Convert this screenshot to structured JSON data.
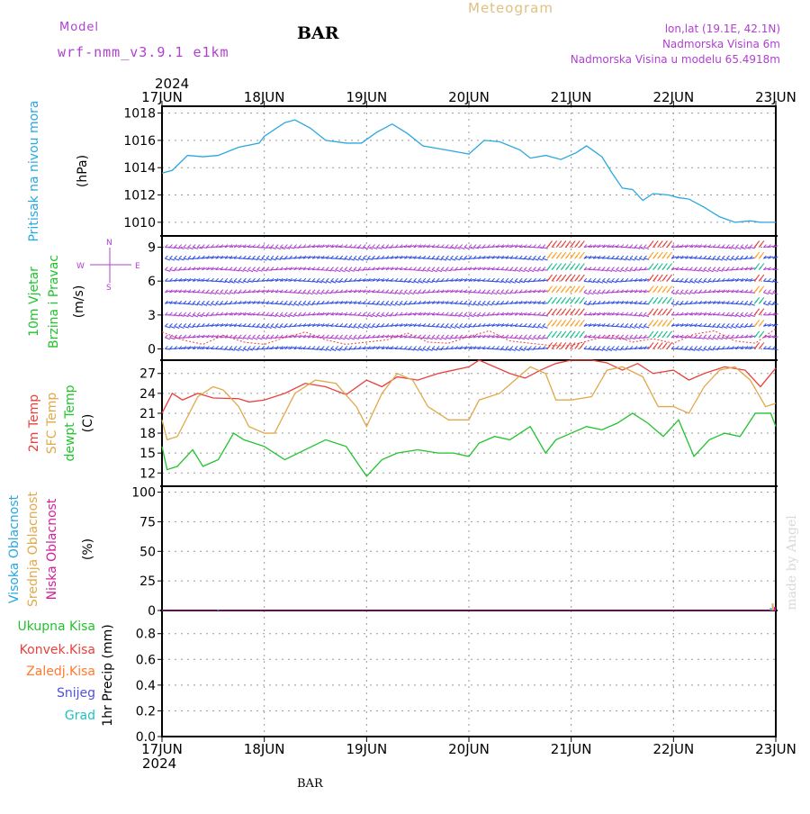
{
  "header": {
    "model_label": "Model",
    "model_name": "wrf-nmm_v3.9.1  e1km",
    "station": "BAR",
    "product": "Meteogram",
    "coords": "lon,lat (19.1E, 42.1N)",
    "elevation": "Nadmorska Visina 6m",
    "model_elevation": "Nadmorska Visina u modelu 65.4918m",
    "year_top": "2024",
    "year_bottom": "2024",
    "footer_station": "BAR",
    "credit": "made by Angel"
  },
  "colors": {
    "pressure": "#2aa7e0",
    "temp2m": "#e8413c",
    "sfc_temp": "#e0a94a",
    "dewpoint": "#22c32e",
    "wind_dir_label": "#b040d0",
    "high_cloud": "#2aa7e0",
    "mid_cloud": "#e0a94a",
    "low_cloud": "#d0209a",
    "total_precip": "#22c32e",
    "conv_precip": "#e8413c",
    "frozen_precip": "#ff7a30",
    "snow": "#5050e0",
    "hail": "#20c0c0"
  },
  "chart_data": [
    {
      "type": "line",
      "panel": "pressure",
      "ylabel_name": "Pritisak na nivou mora",
      "ylabel_unit": "(hPa)",
      "x_ticks": [
        "17JUN",
        "18JUN",
        "19JUN",
        "20JUN",
        "21JUN",
        "22JUN",
        "23JUN"
      ],
      "x_range_days": [
        0,
        6
      ],
      "ylim": [
        1009,
        1018.5
      ],
      "yticks": [
        1010,
        1012,
        1014,
        1016,
        1018
      ],
      "grid": true,
      "series": [
        {
          "x": [
            0,
            0.1,
            0.25,
            0.4,
            0.55,
            0.75,
            0.95,
            1.0,
            1.2,
            1.3,
            1.45,
            1.6,
            1.8,
            1.95,
            2.1,
            2.25,
            2.4,
            2.55,
            2.7,
            2.85,
            3.0,
            3.15,
            3.3,
            3.5,
            3.6,
            3.75,
            3.9,
            4.05,
            4.15,
            4.3,
            4.4,
            4.5,
            4.6,
            4.7,
            4.8,
            4.95,
            5.05,
            5.15,
            5.3,
            5.45,
            5.6,
            5.75,
            5.85,
            5.95,
            6.0
          ],
          "values": [
            1013.6,
            1013.8,
            1014.9,
            1014.8,
            1014.9,
            1015.5,
            1015.8,
            1016.3,
            1017.3,
            1017.5,
            1016.9,
            1016.0,
            1015.8,
            1015.8,
            1016.6,
            1017.2,
            1016.5,
            1015.6,
            1015.4,
            1015.2,
            1015.0,
            1016.0,
            1015.9,
            1015.3,
            1014.7,
            1014.9,
            1014.6,
            1015.1,
            1015.6,
            1014.8,
            1013.6,
            1012.5,
            1012.4,
            1011.6,
            1012.1,
            1012.0,
            1011.8,
            1011.7,
            1011.1,
            1010.4,
            1010.0,
            1010.1,
            1010.0,
            1010.0,
            1010.0
          ]
        }
      ]
    },
    {
      "type": "scatter",
      "panel": "wind",
      "ylabel_name": "10m Vjetar",
      "ylabel_name2": "Brzina i Pravac",
      "ylabel_unit": "(m/s)",
      "compass": {
        "n": "N",
        "s": "S",
        "e": "E",
        "w": "W"
      },
      "ylim": [
        -1,
        10
      ],
      "yticks": [
        0,
        3,
        6,
        9
      ],
      "grid": true,
      "speed_series": {
        "name": "wind speed",
        "x": [
          0,
          0.2,
          0.4,
          0.6,
          0.8,
          1.0,
          1.2,
          1.4,
          1.6,
          1.8,
          2.0,
          2.2,
          2.4,
          2.6,
          2.8,
          3.0,
          3.2,
          3.4,
          3.6,
          3.8,
          4.0,
          4.2,
          4.4,
          4.6,
          4.8,
          5.0,
          5.2,
          5.4,
          5.6,
          5.8,
          6.0
        ],
        "values": [
          1.5,
          0.8,
          0.4,
          1.2,
          0.6,
          0.4,
          1.0,
          1.5,
          0.8,
          0.4,
          0.6,
          0.8,
          1.4,
          0.6,
          0.5,
          1.1,
          1.6,
          0.7,
          0.5,
          0.3,
          0.3,
          0.8,
          1.2,
          0.6,
          0.9,
          0.5,
          1.3,
          1.6,
          0.7,
          0.5,
          1.8
        ]
      },
      "arrow_rows": [
        9,
        8,
        7,
        6,
        5,
        4,
        3,
        2,
        1,
        0
      ],
      "gust_band_days": [
        [
          3.75,
          4.1
        ],
        [
          4.75,
          4.95
        ],
        [
          5.75,
          5.85
        ]
      ]
    },
    {
      "type": "line",
      "panel": "temperature",
      "series_labels": [
        "2m Temp",
        "SFC Temp",
        "dewpt Temp"
      ],
      "ylabel_unit": "(C)",
      "ylim": [
        10,
        29
      ],
      "yticks": [
        12,
        15,
        18,
        21,
        24,
        27
      ],
      "grid": true,
      "series": [
        {
          "name": "2m Temp",
          "x": [
            0,
            0.1,
            0.2,
            0.35,
            0.5,
            0.75,
            0.85,
            1.0,
            1.2,
            1.4,
            1.6,
            1.8,
            2.0,
            2.15,
            2.3,
            2.5,
            2.7,
            2.85,
            3.0,
            3.1,
            3.25,
            3.4,
            3.55,
            3.7,
            3.85,
            4.0,
            4.2,
            4.35,
            4.5,
            4.65,
            4.8,
            5.0,
            5.15,
            5.3,
            5.5,
            5.7,
            5.85,
            6.0
          ],
          "values": [
            21.0,
            24.0,
            23.0,
            24.0,
            23.3,
            23.2,
            22.7,
            23.0,
            24.0,
            25.5,
            25.0,
            23.8,
            26.0,
            25.0,
            26.5,
            26.0,
            27.0,
            27.5,
            28.0,
            29.0,
            28.0,
            27.0,
            26.3,
            27.5,
            28.5,
            29.0,
            29.0,
            28.6,
            27.5,
            28.5,
            27.0,
            27.5,
            26.0,
            27.0,
            28.0,
            27.5,
            25.0,
            27.8
          ]
        },
        {
          "name": "SFC Temp",
          "x": [
            0,
            0.05,
            0.15,
            0.35,
            0.5,
            0.6,
            0.75,
            0.85,
            1.0,
            1.1,
            1.3,
            1.5,
            1.7,
            1.9,
            2.0,
            2.15,
            2.3,
            2.45,
            2.6,
            2.8,
            3.0,
            3.1,
            3.3,
            3.45,
            3.6,
            3.75,
            3.85,
            4.0,
            4.2,
            4.35,
            4.5,
            4.7,
            4.85,
            5.0,
            5.15,
            5.3,
            5.45,
            5.6,
            5.75,
            5.9,
            6.0
          ],
          "values": [
            20.0,
            17.0,
            17.5,
            23.5,
            25.0,
            24.5,
            22.0,
            19.0,
            18.0,
            18.0,
            24.0,
            26.0,
            25.5,
            22.0,
            19.0,
            24.0,
            27.0,
            26.0,
            22.0,
            20.0,
            20.0,
            23.0,
            24.0,
            26.0,
            28.0,
            27.0,
            23.0,
            23.0,
            23.5,
            27.5,
            28.0,
            26.5,
            22.0,
            22.0,
            21.0,
            25.0,
            27.5,
            28.0,
            26.0,
            22.0,
            22.5
          ]
        },
        {
          "name": "dewpt Temp",
          "x": [
            0,
            0.05,
            0.15,
            0.3,
            0.4,
            0.55,
            0.7,
            0.8,
            1.0,
            1.2,
            1.4,
            1.6,
            1.8,
            2.0,
            2.15,
            2.3,
            2.5,
            2.7,
            2.85,
            3.0,
            3.1,
            3.25,
            3.4,
            3.6,
            3.75,
            3.85,
            4.0,
            4.15,
            4.3,
            4.45,
            4.6,
            4.75,
            4.9,
            5.05,
            5.2,
            5.35,
            5.5,
            5.65,
            5.8,
            5.95,
            6.0
          ],
          "values": [
            16.0,
            12.5,
            13.0,
            15.5,
            13.0,
            14.0,
            18.0,
            17.0,
            16.0,
            14.0,
            15.5,
            17.0,
            16.0,
            11.5,
            14.0,
            15.0,
            15.5,
            15.0,
            15.0,
            14.5,
            16.5,
            17.5,
            17.0,
            19.0,
            15.0,
            17.0,
            18.0,
            19.0,
            18.5,
            19.5,
            21.0,
            19.5,
            17.5,
            20.0,
            14.5,
            17.0,
            18.0,
            17.5,
            21.0,
            21.0,
            19.0
          ]
        }
      ]
    },
    {
      "type": "bar",
      "panel": "cloud",
      "series_labels": [
        "Visoka Oblacnost",
        "Srednja Oblacnost",
        "Niska Oblacnost"
      ],
      "ylabel_unit": "(%)",
      "ylim": [
        0,
        105
      ],
      "yticks": [
        0,
        25,
        50,
        75,
        100
      ],
      "grid": true,
      "series": [
        {
          "name": "Visoka Oblacnost",
          "x": [
            0.55,
            5.95
          ],
          "values": [
            1,
            2
          ]
        },
        {
          "name": "Srednja Oblacnost",
          "x": [
            5.97
          ],
          "values": [
            6
          ]
        },
        {
          "name": "Niska Oblacnost",
          "x": [
            5.99
          ],
          "values": [
            3
          ]
        }
      ]
    },
    {
      "type": "bar",
      "panel": "precip",
      "series_labels": [
        "Ukupna Kisa",
        "Konvek.Kisa",
        "Zaledj.Kisa",
        "Snijeg",
        "Grad"
      ],
      "ylabel_unit": "1hr Precip (mm)",
      "ylim": [
        0,
        0.98
      ],
      "yticks": [
        0.0,
        0.2,
        0.4,
        0.6,
        0.8
      ],
      "grid": true,
      "values": []
    }
  ]
}
